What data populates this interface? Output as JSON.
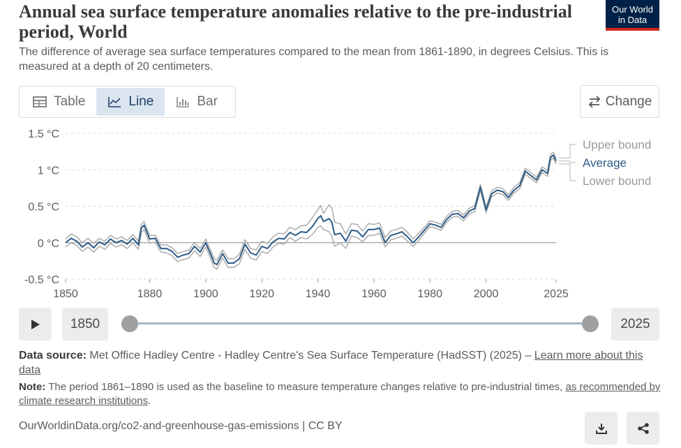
{
  "header": {
    "title": "Annual sea surface temperature anomalies relative to the pre-industrial period, World",
    "subtitle": "The difference of average sea surface temperatures compared to the mean from 1861-1890, in degrees Celsius. This is measured at a depth of 20 centimeters.",
    "logo_line1": "Our World",
    "logo_line2": "in Data"
  },
  "tabs": [
    {
      "label": "Table",
      "icon": "table-icon"
    },
    {
      "label": "Line",
      "icon": "line-chart-icon"
    },
    {
      "label": "Bar",
      "icon": "bar-chart-icon"
    }
  ],
  "change_label": "Change",
  "colors": {
    "average": "#2d5a86",
    "bounds": "#b0b0b0",
    "zero_line": "#8a8a8a",
    "grid": "#dddddd"
  },
  "chart_data": {
    "type": "line",
    "title": "Annual sea surface temperature anomalies relative to the pre-industrial period, World",
    "ylabel": "°C",
    "xlim": [
      1850,
      2025
    ],
    "ylim": [
      -0.5,
      1.5
    ],
    "y_ticks": [
      -0.5,
      0,
      0.5,
      1,
      1.5
    ],
    "y_tick_labels": [
      "-0.5 °C",
      "0 °C",
      "0.5 °C",
      "1 °C",
      "1.5 °C"
    ],
    "x_ticks": [
      1850,
      1880,
      1900,
      1920,
      1940,
      1960,
      1980,
      2000,
      2025
    ],
    "x_tick_labels": [
      "1850",
      "1880",
      "1900",
      "1920",
      "1940",
      "1960",
      "1980",
      "2000",
      "2025"
    ],
    "legend": [
      "Upper bound",
      "Average",
      "Lower bound"
    ],
    "legend_position": "right",
    "grid": true,
    "series": [
      {
        "name": "Average",
        "x": [
          1850,
          1852,
          1854,
          1856,
          1858,
          1860,
          1862,
          1864,
          1866,
          1868,
          1870,
          1872,
          1874,
          1876,
          1877,
          1878,
          1880,
          1882,
          1884,
          1886,
          1888,
          1890,
          1892,
          1894,
          1896,
          1898,
          1900,
          1902,
          1903,
          1904,
          1906,
          1908,
          1910,
          1912,
          1914,
          1916,
          1918,
          1920,
          1922,
          1924,
          1926,
          1928,
          1930,
          1932,
          1934,
          1936,
          1938,
          1940,
          1941,
          1942,
          1944,
          1945,
          1946,
          1948,
          1950,
          1952,
          1954,
          1956,
          1958,
          1960,
          1962,
          1964,
          1966,
          1968,
          1970,
          1972,
          1974,
          1976,
          1978,
          1980,
          1982,
          1984,
          1986,
          1988,
          1990,
          1992,
          1994,
          1996,
          1998,
          2000,
          2002,
          2004,
          2006,
          2008,
          2010,
          2012,
          2014,
          2016,
          2018,
          2020,
          2022,
          2023,
          2024,
          2025
        ],
        "values": [
          0.0,
          0.06,
          0.02,
          -0.06,
          0.0,
          -0.07,
          0.01,
          -0.03,
          0.05,
          0.0,
          0.03,
          -0.02,
          0.06,
          -0.03,
          0.2,
          0.24,
          0.05,
          0.06,
          -0.08,
          -0.08,
          -0.12,
          -0.2,
          -0.17,
          -0.15,
          -0.05,
          -0.13,
          0.0,
          -0.18,
          -0.28,
          -0.3,
          -0.15,
          -0.28,
          -0.28,
          -0.22,
          -0.02,
          -0.14,
          -0.17,
          -0.05,
          -0.08,
          0.01,
          0.06,
          0.05,
          0.14,
          0.1,
          0.15,
          0.14,
          0.22,
          0.33,
          0.37,
          0.29,
          0.33,
          0.28,
          0.11,
          0.13,
          0.02,
          0.17,
          0.16,
          0.08,
          0.18,
          0.18,
          0.2,
          0.0,
          0.1,
          0.12,
          0.15,
          0.08,
          0.0,
          0.08,
          0.17,
          0.26,
          0.24,
          0.21,
          0.32,
          0.39,
          0.4,
          0.34,
          0.43,
          0.47,
          0.76,
          0.45,
          0.67,
          0.72,
          0.7,
          0.62,
          0.72,
          0.78,
          0.98,
          0.92,
          0.86,
          1.0,
          0.95,
          1.17,
          1.2,
          1.12
        ]
      },
      {
        "name": "Upper bound",
        "x": [
          1850,
          1852,
          1854,
          1856,
          1858,
          1860,
          1862,
          1864,
          1866,
          1868,
          1870,
          1872,
          1874,
          1876,
          1877,
          1878,
          1880,
          1882,
          1884,
          1886,
          1888,
          1890,
          1892,
          1894,
          1896,
          1898,
          1900,
          1902,
          1903,
          1904,
          1906,
          1908,
          1910,
          1912,
          1914,
          1916,
          1918,
          1920,
          1922,
          1924,
          1926,
          1928,
          1930,
          1932,
          1934,
          1936,
          1938,
          1940,
          1941,
          1942,
          1944,
          1945,
          1946,
          1948,
          1950,
          1952,
          1954,
          1956,
          1958,
          1960,
          1962,
          1964,
          1966,
          1968,
          1970,
          1972,
          1974,
          1976,
          1978,
          1980,
          1982,
          1984,
          1986,
          1988,
          1990,
          1992,
          1994,
          1996,
          1998,
          2000,
          2002,
          2004,
          2006,
          2008,
          2010,
          2012,
          2014,
          2016,
          2018,
          2020,
          2022,
          2023,
          2024,
          2025
        ],
        "values": [
          0.05,
          0.12,
          0.08,
          0.0,
          0.06,
          -0.01,
          0.06,
          0.02,
          0.1,
          0.05,
          0.08,
          0.03,
          0.11,
          0.02,
          0.25,
          0.29,
          0.1,
          0.1,
          -0.03,
          -0.03,
          -0.07,
          -0.15,
          -0.12,
          -0.1,
          0.0,
          -0.08,
          0.05,
          -0.13,
          -0.22,
          -0.24,
          -0.1,
          -0.22,
          -0.22,
          -0.16,
          0.04,
          -0.08,
          -0.1,
          0.02,
          -0.01,
          0.08,
          0.13,
          0.12,
          0.21,
          0.18,
          0.23,
          0.24,
          0.34,
          0.45,
          0.51,
          0.4,
          0.52,
          0.48,
          0.28,
          0.26,
          0.12,
          0.26,
          0.25,
          0.16,
          0.26,
          0.25,
          0.27,
          0.07,
          0.16,
          0.18,
          0.21,
          0.14,
          0.05,
          0.13,
          0.21,
          0.3,
          0.28,
          0.25,
          0.36,
          0.43,
          0.44,
          0.38,
          0.47,
          0.51,
          0.8,
          0.49,
          0.71,
          0.76,
          0.74,
          0.66,
          0.76,
          0.82,
          1.02,
          0.96,
          0.9,
          1.04,
          0.99,
          1.21,
          1.24,
          1.16
        ]
      },
      {
        "name": "Lower bound",
        "x": [
          1850,
          1852,
          1854,
          1856,
          1858,
          1860,
          1862,
          1864,
          1866,
          1868,
          1870,
          1872,
          1874,
          1876,
          1877,
          1878,
          1880,
          1882,
          1884,
          1886,
          1888,
          1890,
          1892,
          1894,
          1896,
          1898,
          1900,
          1902,
          1903,
          1904,
          1906,
          1908,
          1910,
          1912,
          1914,
          1916,
          1918,
          1920,
          1922,
          1924,
          1926,
          1928,
          1930,
          1932,
          1934,
          1936,
          1938,
          1940,
          1941,
          1942,
          1944,
          1945,
          1946,
          1948,
          1950,
          1952,
          1954,
          1956,
          1958,
          1960,
          1962,
          1964,
          1966,
          1968,
          1970,
          1972,
          1974,
          1976,
          1978,
          1980,
          1982,
          1984,
          1986,
          1988,
          1990,
          1992,
          1994,
          1996,
          1998,
          2000,
          2002,
          2004,
          2006,
          2008,
          2010,
          2012,
          2014,
          2016,
          2018,
          2020,
          2022,
          2023,
          2024,
          2025
        ],
        "values": [
          -0.06,
          0.0,
          -0.04,
          -0.12,
          -0.06,
          -0.13,
          -0.05,
          -0.09,
          -0.01,
          -0.06,
          -0.03,
          -0.08,
          0.0,
          -0.09,
          0.14,
          0.18,
          -0.01,
          0.01,
          -0.13,
          -0.14,
          -0.18,
          -0.26,
          -0.23,
          -0.21,
          -0.11,
          -0.19,
          -0.06,
          -0.24,
          -0.34,
          -0.36,
          -0.21,
          -0.34,
          -0.34,
          -0.29,
          -0.09,
          -0.21,
          -0.24,
          -0.12,
          -0.15,
          -0.06,
          -0.01,
          -0.02,
          0.07,
          0.02,
          0.07,
          0.05,
          0.11,
          0.21,
          0.23,
          0.18,
          0.15,
          0.09,
          -0.05,
          0.0,
          -0.08,
          0.09,
          0.07,
          0.01,
          0.1,
          0.1,
          0.13,
          -0.06,
          0.04,
          0.06,
          0.09,
          0.02,
          -0.05,
          0.03,
          0.13,
          0.22,
          0.2,
          0.17,
          0.28,
          0.35,
          0.36,
          0.3,
          0.39,
          0.43,
          0.72,
          0.41,
          0.63,
          0.68,
          0.66,
          0.58,
          0.68,
          0.74,
          0.94,
          0.88,
          0.82,
          0.96,
          0.91,
          1.13,
          1.16,
          1.08
        ]
      }
    ]
  },
  "timeline": {
    "start_label": "1850",
    "end_label": "2025",
    "start_fraction": 0.0,
    "end_fraction": 1.0
  },
  "source": {
    "label": "Data source:",
    "text": "Met Office Hadley Centre - Hadley Centre's Sea Surface Temperature (HadSST) (2025) –",
    "link": "Learn more about this data"
  },
  "note": {
    "label": "Note:",
    "text": "The period 1861–1890 is used as the baseline to measure temperature changes relative to pre-industrial times,",
    "link": "as recommended by climate research institutions",
    "end": "."
  },
  "footer": {
    "text": "OurWorldinData.org/co2-and-greenhouse-gas-emissions | CC BY"
  }
}
